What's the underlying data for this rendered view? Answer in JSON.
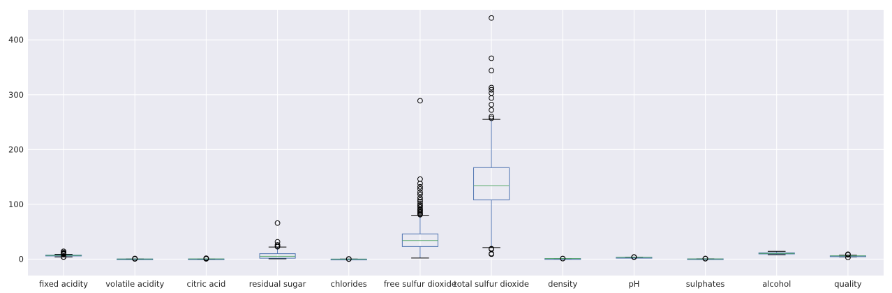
{
  "chart_data": {
    "type": "boxplot",
    "title": "",
    "xlabel": "",
    "ylabel": "",
    "ylim": [
      -30,
      455
    ],
    "yticks": [
      0,
      100,
      200,
      300,
      400
    ],
    "grid": true,
    "background_color": "#eaeaf2",
    "grid_color": "#ffffff",
    "box_color": "#4c72b0",
    "median_color": "#55a868",
    "flier_color": "#000000",
    "categories": [
      "fixed acidity",
      "volatile acidity",
      "citric acid",
      "residual sugar",
      "chlorides",
      "free sulfur dioxide",
      "total sulfur dioxide",
      "density",
      "pH",
      "sulphates",
      "alcohol",
      "quality"
    ],
    "boxes": [
      {
        "whislo": 4.0,
        "q1": 6.3,
        "med": 6.8,
        "q3": 7.3,
        "whishi": 8.8,
        "fliers": [
          3.8,
          3.9,
          9.0,
          9.6,
          10.0,
          10.7,
          11.8,
          14.2
        ]
      },
      {
        "whislo": 0.08,
        "q1": 0.21,
        "med": 0.26,
        "q3": 0.32,
        "whishi": 0.49,
        "fliers": [
          0.55,
          0.6,
          0.7,
          0.85,
          1.1
        ]
      },
      {
        "whislo": 0.0,
        "q1": 0.27,
        "med": 0.32,
        "q3": 0.39,
        "whishi": 0.57,
        "fliers": [
          0.6,
          0.74,
          0.9,
          1.23,
          1.66
        ]
      },
      {
        "whislo": 0.6,
        "q1": 1.7,
        "med": 5.2,
        "q3": 9.9,
        "whishi": 22.0,
        "fliers": [
          22.6,
          23.5,
          26.0,
          31.6,
          65.8
        ]
      },
      {
        "whislo": 0.009,
        "q1": 0.036,
        "med": 0.043,
        "q3": 0.05,
        "whishi": 0.071,
        "fliers": [
          0.1,
          0.2,
          0.35
        ]
      },
      {
        "whislo": 2.0,
        "q1": 23.0,
        "med": 34.0,
        "q3": 46.0,
        "whishi": 80.0,
        "fliers": [
          81,
          82,
          84,
          86,
          88,
          90,
          92,
          95,
          98,
          101,
          105,
          108,
          112,
          118,
          122,
          128,
          132,
          138,
          146,
          289
        ]
      },
      {
        "whislo": 21.0,
        "q1": 108.0,
        "med": 134.0,
        "q3": 167.0,
        "whishi": 255.0,
        "fliers": [
          9,
          10,
          18,
          19,
          257,
          260,
          272,
          282,
          294,
          303,
          309,
          313,
          344,
          366.5,
          440
        ]
      },
      {
        "whislo": 0.987,
        "q1": 0.992,
        "med": 0.994,
        "q3": 0.996,
        "whishi": 1.002,
        "fliers": [
          1.01,
          1.039
        ]
      },
      {
        "whislo": 2.72,
        "q1": 3.09,
        "med": 3.18,
        "q3": 3.28,
        "whishi": 3.57,
        "fliers": [
          3.6,
          3.7,
          3.82
        ]
      },
      {
        "whislo": 0.22,
        "q1": 0.41,
        "med": 0.47,
        "q3": 0.55,
        "whishi": 0.76,
        "fliers": [
          0.8,
          0.9,
          1.08
        ]
      },
      {
        "whislo": 8.0,
        "q1": 9.5,
        "med": 10.4,
        "q3": 11.4,
        "whishi": 14.2,
        "fliers": []
      },
      {
        "whislo": 4.0,
        "q1": 5.0,
        "med": 6.0,
        "q3": 6.0,
        "whishi": 7.0,
        "fliers": [
          3,
          8,
          9
        ]
      }
    ]
  }
}
